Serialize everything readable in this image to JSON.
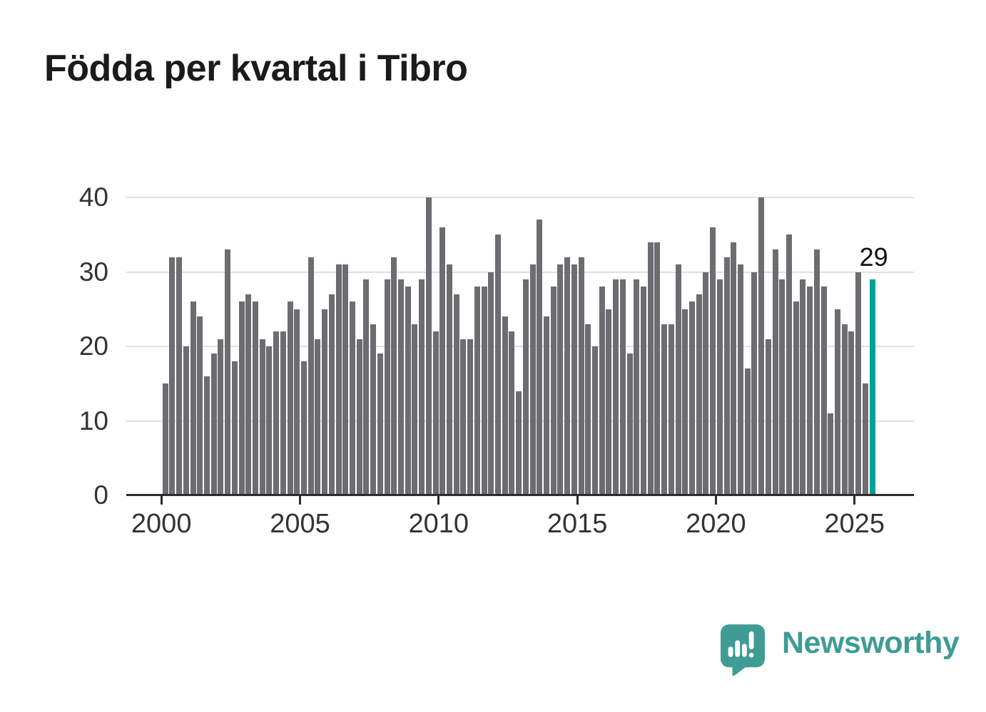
{
  "title": "Födda per kvartal i Tibro",
  "chart_data": {
    "type": "bar",
    "title": "Födda per kvartal i Tibro",
    "frequency": "quarterly",
    "x_start": "2000-Q1",
    "x_end": "2025-Q3",
    "ylim": [
      0,
      40
    ],
    "grid": "horizontal-only",
    "legend": "none",
    "yticks": [
      0,
      10,
      20,
      30,
      40
    ],
    "xticks": [
      2000,
      2005,
      2010,
      2015,
      2020,
      2025
    ],
    "values": [
      15,
      32,
      32,
      20,
      26,
      24,
      16,
      19,
      21,
      33,
      18,
      26,
      27,
      26,
      21,
      20,
      22,
      22,
      26,
      25,
      18,
      32,
      21,
      25,
      27,
      31,
      31,
      26,
      21,
      29,
      23,
      19,
      29,
      32,
      29,
      28,
      23,
      29,
      40,
      22,
      36,
      31,
      27,
      21,
      21,
      28,
      28,
      30,
      35,
      24,
      22,
      14,
      29,
      31,
      37,
      24,
      28,
      31,
      32,
      31,
      32,
      23,
      20,
      28,
      25,
      29,
      29,
      19,
      29,
      28,
      34,
      34,
      23,
      23,
      31,
      25,
      26,
      27,
      30,
      36,
      29,
      32,
      34,
      31,
      17,
      30,
      40,
      21,
      33,
      29,
      35,
      26,
      29,
      28,
      33,
      28,
      11,
      25,
      23,
      22,
      30,
      15,
      29
    ],
    "bar_color": "#6c6c71",
    "highlight_color": "#00a19a",
    "highlight_index": 102,
    "annotation": {
      "text": "29"
    }
  },
  "footer": {
    "brand": "Newsworthy",
    "brand_color": "#3e9c95",
    "logo_icon": "speech-bubble-bar-chart-icon"
  }
}
